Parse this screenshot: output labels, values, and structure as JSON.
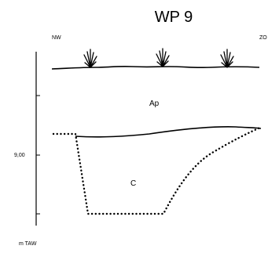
{
  "title": "WP 9",
  "orientation": {
    "left": "NW",
    "right": "ZO"
  },
  "axis": {
    "unit_label": "m TAW",
    "tick_label": "9,00"
  },
  "layers": [
    {
      "label": "Ap"
    },
    {
      "label": "C"
    }
  ],
  "icons": [
    "grass-tuft-icon",
    "grass-tuft-icon",
    "grass-tuft-icon"
  ],
  "colors": {
    "line": "#000000",
    "background": "#ffffff"
  }
}
